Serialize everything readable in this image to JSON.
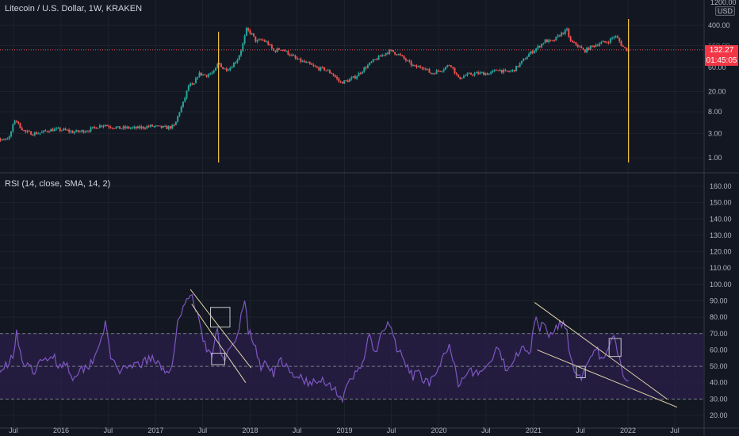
{
  "symbol": {
    "title": "Litecoin / U.S. Dollar, 1W, KRAKEN",
    "currency": "USD",
    "top_tick": "1200.00"
  },
  "last_price": {
    "value": "132.27",
    "countdown": "01:45:05",
    "color": "#f23645"
  },
  "rsi_title": "RSI (14, close, SMA, 14, 2)",
  "colors": {
    "bg": "#131722",
    "up": "#26a69a",
    "down": "#ef5350",
    "rsi": "#7e57c2",
    "band_fill": "#2a1f4a",
    "grid": "#363a45",
    "annot_line": "#e0d5a8",
    "vline": "#f5c542"
  },
  "chart_data": [
    {
      "type": "candlestick",
      "title": "Litecoin / U.S. Dollar, 1W, KRAKEN",
      "y_scale": "log",
      "y_ticks": [
        1.0,
        3.0,
        8.0,
        20.0,
        60.0,
        160.0,
        400.0
      ],
      "y_tick_labels": [
        "1.00",
        "3.00",
        "8.00",
        "20.00",
        "60.00",
        "160.00",
        "400.00"
      ],
      "ylim": [
        0.75,
        1200
      ],
      "x_ticks": [
        "Jul",
        "2016",
        "Jul",
        "2017",
        "Jul",
        "2018",
        "Jul",
        "2019",
        "Jul",
        "2020",
        "Jul",
        "2021",
        "Jul",
        "2022",
        "Jul"
      ],
      "x_tick_dates": [
        "2015-07-01",
        "2016-01-01",
        "2016-07-01",
        "2017-01-01",
        "2017-07-01",
        "2018-01-01",
        "2018-07-01",
        "2019-01-01",
        "2019-07-01",
        "2020-01-01",
        "2020-07-01",
        "2021-01-01",
        "2021-07-01",
        "2022-01-01",
        "2022-07-01"
      ],
      "close_path": [
        [
          "2015-01-12",
          1.5
        ],
        [
          "2015-02-15",
          1.8
        ],
        [
          "2015-03-15",
          1.7
        ],
        [
          "2015-04-15",
          2.1
        ],
        [
          "2015-05-15",
          2.3
        ],
        [
          "2015-06-15",
          2.5
        ],
        [
          "2015-07-08",
          6.0
        ],
        [
          "2015-07-20",
          4.5
        ],
        [
          "2015-08-15",
          3.2
        ],
        [
          "2015-09-15",
          3.0
        ],
        [
          "2015-10-15",
          3.1
        ],
        [
          "2015-11-15",
          3.5
        ],
        [
          "2015-12-15",
          3.6
        ],
        [
          "2016-01-15",
          3.5
        ],
        [
          "2016-02-15",
          3.2
        ],
        [
          "2016-03-15",
          3.3
        ],
        [
          "2016-04-15",
          3.5
        ],
        [
          "2016-05-15",
          4.0
        ],
        [
          "2016-06-15",
          4.5
        ],
        [
          "2016-07-01",
          4.2
        ],
        [
          "2016-08-15",
          3.8
        ],
        [
          "2016-09-15",
          3.9
        ],
        [
          "2016-10-15",
          3.8
        ],
        [
          "2016-11-15",
          4.0
        ],
        [
          "2016-12-15",
          4.2
        ],
        [
          "2017-01-15",
          4.0
        ],
        [
          "2017-02-15",
          3.9
        ],
        [
          "2017-03-15",
          4.2
        ],
        [
          "2017-03-31",
          7.5
        ],
        [
          "2017-04-20",
          13.0
        ],
        [
          "2017-05-10",
          28.0
        ],
        [
          "2017-05-25",
          25.0
        ],
        [
          "2017-06-15",
          45.0
        ],
        [
          "2017-07-15",
          42.0
        ],
        [
          "2017-08-15",
          48.0
        ],
        [
          "2017-09-01",
          75.0
        ],
        [
          "2017-09-20",
          55.0
        ],
        [
          "2017-10-15",
          58.0
        ],
        [
          "2017-11-15",
          90.0
        ],
        [
          "2017-12-01",
          150.0
        ],
        [
          "2017-12-18",
          330.0
        ],
        [
          "2018-01-05",
          280.0
        ],
        [
          "2018-01-25",
          190.0
        ],
        [
          "2018-02-15",
          210.0
        ],
        [
          "2018-03-10",
          180.0
        ],
        [
          "2018-04-01",
          125.0
        ],
        [
          "2018-05-01",
          140.0
        ],
        [
          "2018-06-01",
          110.0
        ],
        [
          "2018-07-01",
          85.0
        ],
        [
          "2018-08-15",
          70.0
        ],
        [
          "2018-09-15",
          58.0
        ],
        [
          "2018-10-15",
          55.0
        ],
        [
          "2018-11-15",
          45.0
        ],
        [
          "2018-12-15",
          30.0
        ],
        [
          "2019-01-15",
          33.0
        ],
        [
          "2019-02-15",
          40.0
        ],
        [
          "2019-03-15",
          55.0
        ],
        [
          "2019-04-15",
          75.0
        ],
        [
          "2019-05-15",
          95.0
        ],
        [
          "2019-06-15",
          120.0
        ],
        [
          "2019-07-01",
          125.0
        ],
        [
          "2019-08-01",
          105.0
        ],
        [
          "2019-09-01",
          78.0
        ],
        [
          "2019-10-01",
          60.0
        ],
        [
          "2019-11-01",
          62.0
        ],
        [
          "2019-12-01",
          45.0
        ],
        [
          "2020-01-15",
          55.0
        ],
        [
          "2020-02-15",
          70.0
        ],
        [
          "2020-03-16",
          36.0
        ],
        [
          "2020-04-15",
          42.0
        ],
        [
          "2020-05-15",
          45.0
        ],
        [
          "2020-06-15",
          46.0
        ],
        [
          "2020-07-15",
          45.0
        ],
        [
          "2020-08-15",
          55.0
        ],
        [
          "2020-09-15",
          48.0
        ],
        [
          "2020-10-15",
          52.0
        ],
        [
          "2020-11-15",
          75.0
        ],
        [
          "2020-12-15",
          110.0
        ],
        [
          "2021-01-15",
          145.0
        ],
        [
          "2021-02-15",
          200.0
        ],
        [
          "2021-03-15",
          190.0
        ],
        [
          "2021-04-15",
          270.0
        ],
        [
          "2021-05-10",
          320.0
        ],
        [
          "2021-05-25",
          185.0
        ],
        [
          "2021-06-15",
          170.0
        ],
        [
          "2021-07-15",
          125.0
        ],
        [
          "2021-08-15",
          155.0
        ],
        [
          "2021-09-15",
          180.0
        ],
        [
          "2021-10-15",
          190.0
        ],
        [
          "2021-11-10",
          250.0
        ],
        [
          "2021-11-25",
          210.0
        ],
        [
          "2021-12-10",
          155.0
        ],
        [
          "2021-12-25",
          135.0
        ],
        [
          "2022-01-03",
          132.27
        ]
      ],
      "last_close": 132.27,
      "vertical_markers": [
        "2017-09-01",
        "2022-01-03"
      ]
    },
    {
      "type": "line",
      "title": "RSI (14, close, SMA, 14, 2)",
      "y_ticks": [
        20,
        30,
        40,
        50,
        60,
        70,
        80,
        90,
        100,
        110,
        120,
        130,
        140,
        150,
        160
      ],
      "y_tick_labels": [
        "20.00",
        "30.00",
        "40.00",
        "50.00",
        "60.00",
        "70.00",
        "80.00",
        "90.00",
        "100.00",
        "110.00",
        "120.00",
        "130.00",
        "140.00",
        "150.00",
        "160.00"
      ],
      "ylim": [
        17,
        166
      ],
      "bands": {
        "upper": 70,
        "middle": 50,
        "lower": 30
      },
      "series": [
        {
          "values": [
            [
              "2015-01-12",
              40
            ],
            [
              "2015-02-01",
              46
            ],
            [
              "2015-03-01",
              45
            ],
            [
              "2015-04-01",
              44
            ],
            [
              "2015-05-01",
              48
            ],
            [
              "2015-06-01",
              50
            ],
            [
              "2015-07-01",
              58
            ],
            [
              "2015-07-12",
              72
            ],
            [
              "2015-07-25",
              58
            ],
            [
              "2015-08-15",
              50
            ],
            [
              "2015-09-15",
              47
            ],
            [
              "2015-10-15",
              52
            ],
            [
              "2015-11-15",
              55
            ],
            [
              "2015-12-01",
              58
            ],
            [
              "2015-12-20",
              50
            ],
            [
              "2016-01-15",
              53
            ],
            [
              "2016-02-15",
              44
            ],
            [
              "2016-03-15",
              48
            ],
            [
              "2016-04-15",
              50
            ],
            [
              "2016-05-15",
              58
            ],
            [
              "2016-06-20",
              76
            ],
            [
              "2016-07-10",
              55
            ],
            [
              "2016-08-15",
              48
            ],
            [
              "2016-09-15",
              47
            ],
            [
              "2016-10-15",
              51
            ],
            [
              "2016-11-15",
              52
            ],
            [
              "2016-12-15",
              55
            ],
            [
              "2017-01-15",
              50
            ],
            [
              "2017-02-15",
              47
            ],
            [
              "2017-03-10",
              52
            ],
            [
              "2017-04-01",
              82
            ],
            [
              "2017-05-01",
              90
            ],
            [
              "2017-05-15",
              96
            ],
            [
              "2017-06-01",
              85
            ],
            [
              "2017-06-15",
              80
            ],
            [
              "2017-07-15",
              60
            ],
            [
              "2017-08-05",
              55
            ],
            [
              "2017-08-25",
              74
            ],
            [
              "2017-09-10",
              60
            ],
            [
              "2017-09-25",
              55
            ],
            [
              "2017-10-15",
              60
            ],
            [
              "2017-11-10",
              65
            ],
            [
              "2017-12-10",
              92
            ],
            [
              "2017-12-25",
              72
            ],
            [
              "2018-01-20",
              62
            ],
            [
              "2018-02-10",
              50
            ],
            [
              "2018-03-10",
              52
            ],
            [
              "2018-04-01",
              46
            ],
            [
              "2018-05-01",
              54
            ],
            [
              "2018-05-25",
              48
            ],
            [
              "2018-06-20",
              42
            ],
            [
              "2018-07-15",
              44
            ],
            [
              "2018-08-15",
              39
            ],
            [
              "2018-09-15",
              40
            ],
            [
              "2018-10-15",
              42
            ],
            [
              "2018-11-25",
              36
            ],
            [
              "2018-12-25",
              30
            ],
            [
              "2019-01-15",
              38
            ],
            [
              "2019-02-15",
              46
            ],
            [
              "2019-03-10",
              52
            ],
            [
              "2019-04-05",
              68
            ],
            [
              "2019-05-01",
              58
            ],
            [
              "2019-06-01",
              72
            ],
            [
              "2019-06-25",
              76
            ],
            [
              "2019-07-20",
              62
            ],
            [
              "2019-08-20",
              52
            ],
            [
              "2019-09-20",
              44
            ],
            [
              "2019-10-20",
              45
            ],
            [
              "2019-11-20",
              40
            ],
            [
              "2019-12-20",
              42
            ],
            [
              "2020-01-15",
              55
            ],
            [
              "2020-02-15",
              62
            ],
            [
              "2020-03-01",
              52
            ],
            [
              "2020-03-16",
              40
            ],
            [
              "2020-04-10",
              46
            ],
            [
              "2020-05-15",
              47
            ],
            [
              "2020-06-15",
              46
            ],
            [
              "2020-07-15",
              52
            ],
            [
              "2020-08-15",
              60
            ],
            [
              "2020-09-15",
              49
            ],
            [
              "2020-10-15",
              54
            ],
            [
              "2020-11-20",
              64
            ],
            [
              "2020-12-20",
              58
            ],
            [
              "2021-01-10",
              83
            ],
            [
              "2021-01-25",
              72
            ],
            [
              "2021-02-10",
              80
            ],
            [
              "2021-03-01",
              68
            ],
            [
              "2021-03-20",
              74
            ],
            [
              "2021-04-15",
              76
            ],
            [
              "2021-05-05",
              75
            ],
            [
              "2021-05-25",
              55
            ],
            [
              "2021-06-15",
              46
            ],
            [
              "2021-07-10",
              44
            ],
            [
              "2021-08-10",
              54
            ],
            [
              "2021-09-05",
              60
            ],
            [
              "2021-09-25",
              52
            ],
            [
              "2021-10-20",
              62
            ],
            [
              "2021-11-10",
              68
            ],
            [
              "2021-11-25",
              56
            ],
            [
              "2021-12-10",
              46
            ],
            [
              "2021-12-25",
              43
            ],
            [
              "2022-01-03",
              42
            ]
          ]
        }
      ]
    }
  ]
}
